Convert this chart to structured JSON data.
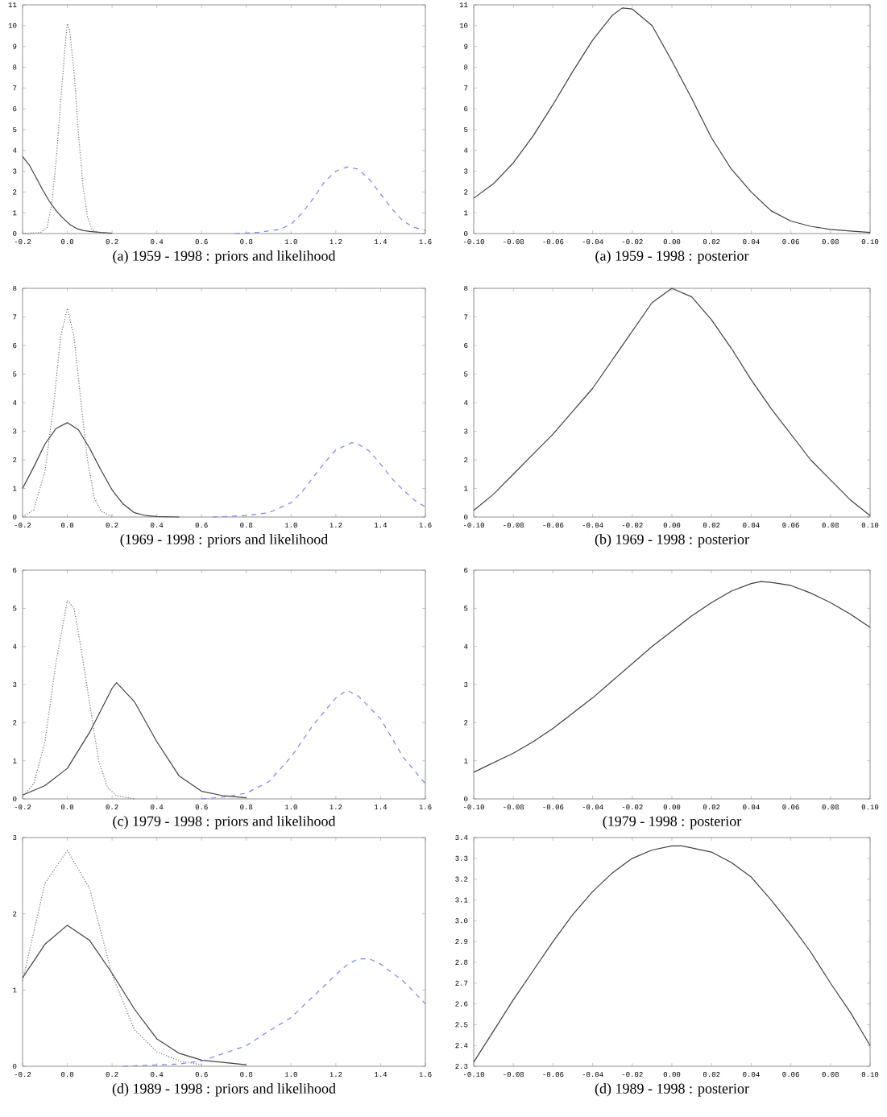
{
  "chart_data": [
    {
      "type": "line",
      "title": "(a)  1959  -  1998  : priors and likelihood",
      "marker": "none",
      "xlim": [
        -0.2,
        1.6
      ],
      "ylim": [
        0,
        11
      ],
      "xticks": [
        {
          "value": -0.2,
          "label": "-0.2"
        },
        {
          "value": 0,
          "label": "0.0"
        },
        {
          "value": 0.2,
          "label": "0.2"
        },
        {
          "value": 0.4,
          "label": "0.4"
        },
        {
          "value": 0.6,
          "label": "0.6"
        },
        {
          "value": 0.8,
          "label": "0.8"
        },
        {
          "value": 1.0,
          "label": "1.0"
        },
        {
          "value": 1.2,
          "label": "1.2"
        },
        {
          "value": 1.4,
          "label": "1.4"
        },
        {
          "value": 1.6,
          "label": "1.6"
        }
      ],
      "yticks": [
        0,
        1,
        2,
        3,
        4,
        5,
        6,
        7,
        8,
        9,
        10,
        11
      ],
      "series": [
        {
          "color": "#404040",
          "line_style": "solid",
          "x": [
            -0.2,
            -0.17,
            -0.14,
            -0.11,
            -0.08,
            -0.05,
            -0.02,
            0.01,
            0.04,
            0.07,
            0.1,
            0.15,
            0.2
          ],
          "values": [
            3.7,
            3.3,
            2.7,
            2.1,
            1.55,
            1.1,
            0.75,
            0.45,
            0.25,
            0.15,
            0.1,
            0.05,
            0.02
          ]
        },
        {
          "color": "#707070",
          "line_style": "dotted",
          "x": [
            -0.2,
            -0.12,
            -0.09,
            -0.07,
            -0.05,
            -0.03,
            -0.01,
            0.0,
            0.01,
            0.03,
            0.05,
            0.07,
            0.09,
            0.11,
            0.14,
            0.2
          ],
          "values": [
            0,
            0.05,
            0.3,
            1.4,
            3.5,
            6.3,
            9.0,
            10.1,
            9.8,
            7.8,
            4.8,
            2.3,
            0.8,
            0.2,
            0.05,
            0
          ]
        },
        {
          "color": "#7f7fff",
          "line_style": "dashed",
          "x": [
            0.75,
            0.85,
            0.95,
            1.0,
            1.05,
            1.1,
            1.15,
            1.2,
            1.25,
            1.3,
            1.35,
            1.4,
            1.45,
            1.5,
            1.55,
            1.6
          ],
          "values": [
            0,
            0.05,
            0.2,
            0.45,
            1.0,
            1.7,
            2.5,
            3.0,
            3.2,
            3.1,
            2.6,
            1.9,
            1.2,
            0.6,
            0.3,
            0.15
          ]
        }
      ]
    },
    {
      "type": "line",
      "title": "(a)  1959  -  1998  : posterior",
      "marker": "none",
      "xlim": [
        -0.1,
        0.1
      ],
      "ylim": [
        0,
        11
      ],
      "xticks": [
        {
          "value": -0.1,
          "label": "-0.10"
        },
        {
          "value": -0.08,
          "label": "-0.08"
        },
        {
          "value": -0.06,
          "label": "-0.06"
        },
        {
          "value": -0.04,
          "label": "-0.04"
        },
        {
          "value": -0.02,
          "label": "-0.02"
        },
        {
          "value": 0,
          "label": "0.00"
        },
        {
          "value": 0.02,
          "label": "0.02"
        },
        {
          "value": 0.04,
          "label": "0.04"
        },
        {
          "value": 0.06,
          "label": "0.06"
        },
        {
          "value": 0.08,
          "label": "0.08"
        },
        {
          "value": 0.1,
          "label": "0.10"
        }
      ],
      "yticks": [
        0,
        1,
        2,
        3,
        4,
        5,
        6,
        7,
        8,
        9,
        10,
        11
      ],
      "series": [
        {
          "color": "#404040",
          "line_style": "solid",
          "x": [
            -0.1,
            -0.09,
            -0.08,
            -0.07,
            -0.06,
            -0.05,
            -0.04,
            -0.03,
            -0.025,
            -0.02,
            -0.01,
            0.0,
            0.01,
            0.02,
            0.03,
            0.04,
            0.05,
            0.06,
            0.07,
            0.08,
            0.09,
            0.1
          ],
          "values": [
            1.7,
            2.4,
            3.4,
            4.7,
            6.2,
            7.8,
            9.3,
            10.5,
            10.85,
            10.8,
            10.0,
            8.3,
            6.5,
            4.6,
            3.1,
            2.0,
            1.1,
            0.6,
            0.35,
            0.2,
            0.12,
            0.05
          ]
        }
      ]
    },
    {
      "type": "line",
      "title": "(1969  -  1998  : priors and likelihood",
      "marker": "none",
      "xlim": [
        -0.2,
        1.6
      ],
      "ylim": [
        0,
        8
      ],
      "xticks": [
        {
          "value": -0.2,
          "label": "-0.2"
        },
        {
          "value": 0,
          "label": "0.0"
        },
        {
          "value": 0.2,
          "label": "0.2"
        },
        {
          "value": 0.4,
          "label": "0.4"
        },
        {
          "value": 0.6,
          "label": "0.6"
        },
        {
          "value": 0.8,
          "label": "0.8"
        },
        {
          "value": 1.0,
          "label": "1.0"
        },
        {
          "value": 1.2,
          "label": "1.2"
        },
        {
          "value": 1.4,
          "label": "1.4"
        },
        {
          "value": 1.6,
          "label": "1.6"
        }
      ],
      "yticks": [
        0,
        1,
        2,
        3,
        4,
        5,
        6,
        7,
        8
      ],
      "series": [
        {
          "color": "#404040",
          "line_style": "solid",
          "x": [
            -0.2,
            -0.15,
            -0.1,
            -0.05,
            0.0,
            0.05,
            0.1,
            0.15,
            0.2,
            0.25,
            0.3,
            0.35,
            0.4,
            0.5
          ],
          "values": [
            1.0,
            1.75,
            2.55,
            3.1,
            3.3,
            3.05,
            2.4,
            1.65,
            0.95,
            0.45,
            0.15,
            0.05,
            0.02,
            0
          ]
        },
        {
          "color": "#707070",
          "line_style": "dotted",
          "x": [
            -0.2,
            -0.15,
            -0.1,
            -0.06,
            -0.03,
            0.0,
            0.03,
            0.06,
            0.09,
            0.12,
            0.15,
            0.2
          ],
          "values": [
            0,
            0.25,
            1.6,
            4.0,
            6.3,
            7.3,
            6.3,
            4.1,
            2.0,
            0.7,
            0.2,
            0.02
          ]
        },
        {
          "color": "#7f7fff",
          "line_style": "dashed",
          "x": [
            0.65,
            0.8,
            0.9,
            1.0,
            1.05,
            1.1,
            1.15,
            1.2,
            1.27,
            1.3,
            1.35,
            1.4,
            1.45,
            1.5,
            1.55,
            1.6
          ],
          "values": [
            0,
            0.05,
            0.15,
            0.5,
            0.9,
            1.4,
            1.9,
            2.35,
            2.6,
            2.55,
            2.3,
            1.85,
            1.35,
            0.95,
            0.6,
            0.35
          ]
        }
      ]
    },
    {
      "type": "line",
      "title": "(b)  1969  -  1998  : posterior",
      "marker": "none",
      "xlim": [
        -0.1,
        0.1
      ],
      "ylim": [
        0,
        8
      ],
      "xticks": [
        {
          "value": -0.1,
          "label": "-0.10"
        },
        {
          "value": -0.08,
          "label": "-0.08"
        },
        {
          "value": -0.06,
          "label": "-0.06"
        },
        {
          "value": -0.04,
          "label": "-0.04"
        },
        {
          "value": -0.02,
          "label": "-0.02"
        },
        {
          "value": 0,
          "label": "0.00"
        },
        {
          "value": 0.02,
          "label": "0.02"
        },
        {
          "value": 0.04,
          "label": "0.04"
        },
        {
          "value": 0.06,
          "label": "0.06"
        },
        {
          "value": 0.08,
          "label": "0.08"
        },
        {
          "value": 0.1,
          "label": "0.10"
        }
      ],
      "yticks": [
        0,
        1,
        2,
        3,
        4,
        5,
        6,
        7,
        8
      ],
      "series": [
        {
          "color": "#404040",
          "line_style": "solid",
          "x": [
            -0.1,
            -0.09,
            -0.08,
            -0.07,
            -0.06,
            -0.05,
            -0.04,
            -0.03,
            -0.02,
            -0.01,
            0.0,
            0.01,
            0.02,
            0.03,
            0.04,
            0.05,
            0.06,
            0.07,
            0.08,
            0.09,
            0.1
          ],
          "values": [
            0.23,
            0.8,
            1.5,
            2.2,
            2.9,
            3.7,
            4.5,
            5.5,
            6.5,
            7.5,
            8.0,
            7.7,
            6.9,
            5.9,
            4.8,
            3.8,
            2.9,
            2.0,
            1.3,
            0.6,
            0.05
          ]
        }
      ]
    },
    {
      "type": "line",
      "title": "(c)  1979  -  1998  : priors and likelihood",
      "marker": "none",
      "xlim": [
        -0.2,
        1.6
      ],
      "ylim": [
        0,
        6
      ],
      "xticks": [
        {
          "value": -0.2,
          "label": "-0.2"
        },
        {
          "value": 0,
          "label": "0.0"
        },
        {
          "value": 0.2,
          "label": "0.2"
        },
        {
          "value": 0.4,
          "label": "0.4"
        },
        {
          "value": 0.6,
          "label": "0.6"
        },
        {
          "value": 0.8,
          "label": "0.8"
        },
        {
          "value": 1.0,
          "label": "1.0"
        },
        {
          "value": 1.2,
          "label": "1.2"
        },
        {
          "value": 1.4,
          "label": "1.4"
        },
        {
          "value": 1.6,
          "label": "1.6"
        }
      ],
      "yticks": [
        0,
        1,
        2,
        3,
        4,
        5,
        6
      ],
      "series": [
        {
          "color": "#404040",
          "line_style": "solid",
          "x": [
            -0.2,
            -0.1,
            0.0,
            0.1,
            0.2,
            0.22,
            0.3,
            0.4,
            0.5,
            0.6,
            0.7,
            0.8
          ],
          "values": [
            0.1,
            0.35,
            0.8,
            1.75,
            2.9,
            3.05,
            2.55,
            1.5,
            0.6,
            0.2,
            0.08,
            0.03
          ]
        },
        {
          "color": "#707070",
          "line_style": "dotted",
          "x": [
            -0.2,
            -0.15,
            -0.1,
            -0.05,
            0.0,
            0.03,
            0.06,
            0.1,
            0.14,
            0.18,
            0.22,
            0.3
          ],
          "values": [
            0.05,
            0.4,
            1.5,
            3.6,
            5.2,
            5.0,
            4.0,
            2.5,
            1.0,
            0.3,
            0.08,
            0
          ]
        },
        {
          "color": "#7f7fff",
          "line_style": "dashed",
          "x": [
            0.6,
            0.7,
            0.8,
            0.9,
            1.0,
            1.1,
            1.2,
            1.25,
            1.3,
            1.4,
            1.5,
            1.6
          ],
          "values": [
            0,
            0.05,
            0.15,
            0.45,
            1.1,
            1.95,
            2.65,
            2.85,
            2.7,
            2.1,
            1.1,
            0.4
          ]
        }
      ]
    },
    {
      "type": "line",
      "title": "(1979  -  1998  : posterior",
      "marker": "none",
      "xlim": [
        -0.1,
        0.1
      ],
      "ylim": [
        0,
        6
      ],
      "xticks": [
        {
          "value": -0.1,
          "label": "-0.10"
        },
        {
          "value": -0.08,
          "label": "-0.08"
        },
        {
          "value": -0.06,
          "label": "-0.06"
        },
        {
          "value": -0.04,
          "label": "-0.04"
        },
        {
          "value": -0.02,
          "label": "-0.02"
        },
        {
          "value": 0,
          "label": "0.00"
        },
        {
          "value": 0.02,
          "label": "0.02"
        },
        {
          "value": 0.04,
          "label": "0.04"
        },
        {
          "value": 0.06,
          "label": "0.06"
        },
        {
          "value": 0.08,
          "label": "0.08"
        },
        {
          "value": 0.1,
          "label": "0.10"
        }
      ],
      "yticks": [
        0,
        1,
        2,
        3,
        4,
        5,
        6
      ],
      "series": [
        {
          "color": "#404040",
          "line_style": "solid",
          "x": [
            -0.1,
            -0.09,
            -0.08,
            -0.07,
            -0.06,
            -0.05,
            -0.04,
            -0.03,
            -0.02,
            -0.01,
            0.0,
            0.01,
            0.02,
            0.03,
            0.04,
            0.045,
            0.05,
            0.06,
            0.07,
            0.08,
            0.09,
            0.1
          ],
          "values": [
            0.7,
            0.95,
            1.2,
            1.5,
            1.85,
            2.25,
            2.65,
            3.1,
            3.55,
            4.0,
            4.4,
            4.8,
            5.15,
            5.45,
            5.65,
            5.7,
            5.68,
            5.6,
            5.4,
            5.15,
            4.85,
            4.5
          ]
        }
      ]
    },
    {
      "type": "line",
      "title": "(d)  1989  -  1998  : priors and likelihood",
      "marker": "none",
      "xlim": [
        -0.2,
        1.6
      ],
      "ylim": [
        0,
        3
      ],
      "xticks": [
        {
          "value": -0.2,
          "label": "-0.2"
        },
        {
          "value": 0,
          "label": "0.0"
        },
        {
          "value": 0.2,
          "label": "0.2"
        },
        {
          "value": 0.4,
          "label": "0.4"
        },
        {
          "value": 0.6,
          "label": "0.6"
        },
        {
          "value": 0.8,
          "label": "0.8"
        },
        {
          "value": 1.0,
          "label": "1.0"
        },
        {
          "value": 1.2,
          "label": "1.2"
        },
        {
          "value": 1.4,
          "label": "1.4"
        },
        {
          "value": 1.6,
          "label": "1.6"
        }
      ],
      "yticks": [
        0,
        1,
        2,
        3
      ],
      "series": [
        {
          "color": "#404040",
          "line_style": "solid",
          "x": [
            -0.2,
            -0.1,
            0.0,
            0.1,
            0.2,
            0.3,
            0.4,
            0.5,
            0.6,
            0.8
          ],
          "values": [
            1.16,
            1.6,
            1.85,
            1.65,
            1.22,
            0.75,
            0.36,
            0.17,
            0.08,
            0.02
          ]
        },
        {
          "color": "#707070",
          "line_style": "dotted",
          "x": [
            -0.2,
            -0.1,
            0.0,
            0.1,
            0.2,
            0.3,
            0.4,
            0.5,
            0.6
          ],
          "values": [
            1.12,
            2.4,
            2.83,
            2.33,
            1.2,
            0.48,
            0.19,
            0.07,
            0.02
          ]
        },
        {
          "color": "#7f7fff",
          "line_style": "dashed",
          "x": [
            0.25,
            0.5,
            0.6,
            0.8,
            0.9,
            1.0,
            1.1,
            1.2,
            1.25,
            1.3,
            1.35,
            1.4,
            1.5,
            1.6
          ],
          "values": [
            0,
            0.03,
            0.07,
            0.27,
            0.46,
            0.64,
            0.92,
            1.2,
            1.33,
            1.41,
            1.41,
            1.34,
            1.12,
            0.82
          ]
        }
      ]
    },
    {
      "type": "line",
      "title": "(d)  1989  -  1998  : posterior",
      "marker": "none",
      "xlim": [
        -0.1,
        0.1
      ],
      "ylim": [
        2.3,
        3.4
      ],
      "xticks": [
        {
          "value": -0.1,
          "label": "-0.10"
        },
        {
          "value": -0.08,
          "label": "-0.08"
        },
        {
          "value": -0.06,
          "label": "-0.06"
        },
        {
          "value": -0.04,
          "label": "-0.04"
        },
        {
          "value": -0.02,
          "label": "-0.02"
        },
        {
          "value": 0,
          "label": "0.00"
        },
        {
          "value": 0.02,
          "label": "0.02"
        },
        {
          "value": 0.04,
          "label": "0.04"
        },
        {
          "value": 0.06,
          "label": "0.06"
        },
        {
          "value": 0.08,
          "label": "0.08"
        },
        {
          "value": 0.1,
          "label": "0.10"
        }
      ],
      "yticks": [
        2.3,
        2.4,
        2.5,
        2.6,
        2.7,
        2.8,
        2.9,
        {
          "value": 3.0,
          "label": "3.0"
        },
        3.1,
        3.2,
        3.3,
        3.4
      ],
      "series": [
        {
          "color": "#404040",
          "line_style": "solid",
          "x": [
            -0.1,
            -0.09,
            -0.08,
            -0.07,
            -0.06,
            -0.05,
            -0.04,
            -0.03,
            -0.02,
            -0.01,
            0.0,
            0.005,
            0.01,
            0.02,
            0.03,
            0.04,
            0.05,
            0.06,
            0.07,
            0.08,
            0.09,
            0.1
          ],
          "values": [
            2.32,
            2.47,
            2.62,
            2.76,
            2.9,
            3.03,
            3.14,
            3.23,
            3.3,
            3.34,
            3.36,
            3.36,
            3.35,
            3.33,
            3.28,
            3.21,
            3.1,
            2.98,
            2.85,
            2.7,
            2.56,
            2.4
          ]
        }
      ]
    }
  ]
}
